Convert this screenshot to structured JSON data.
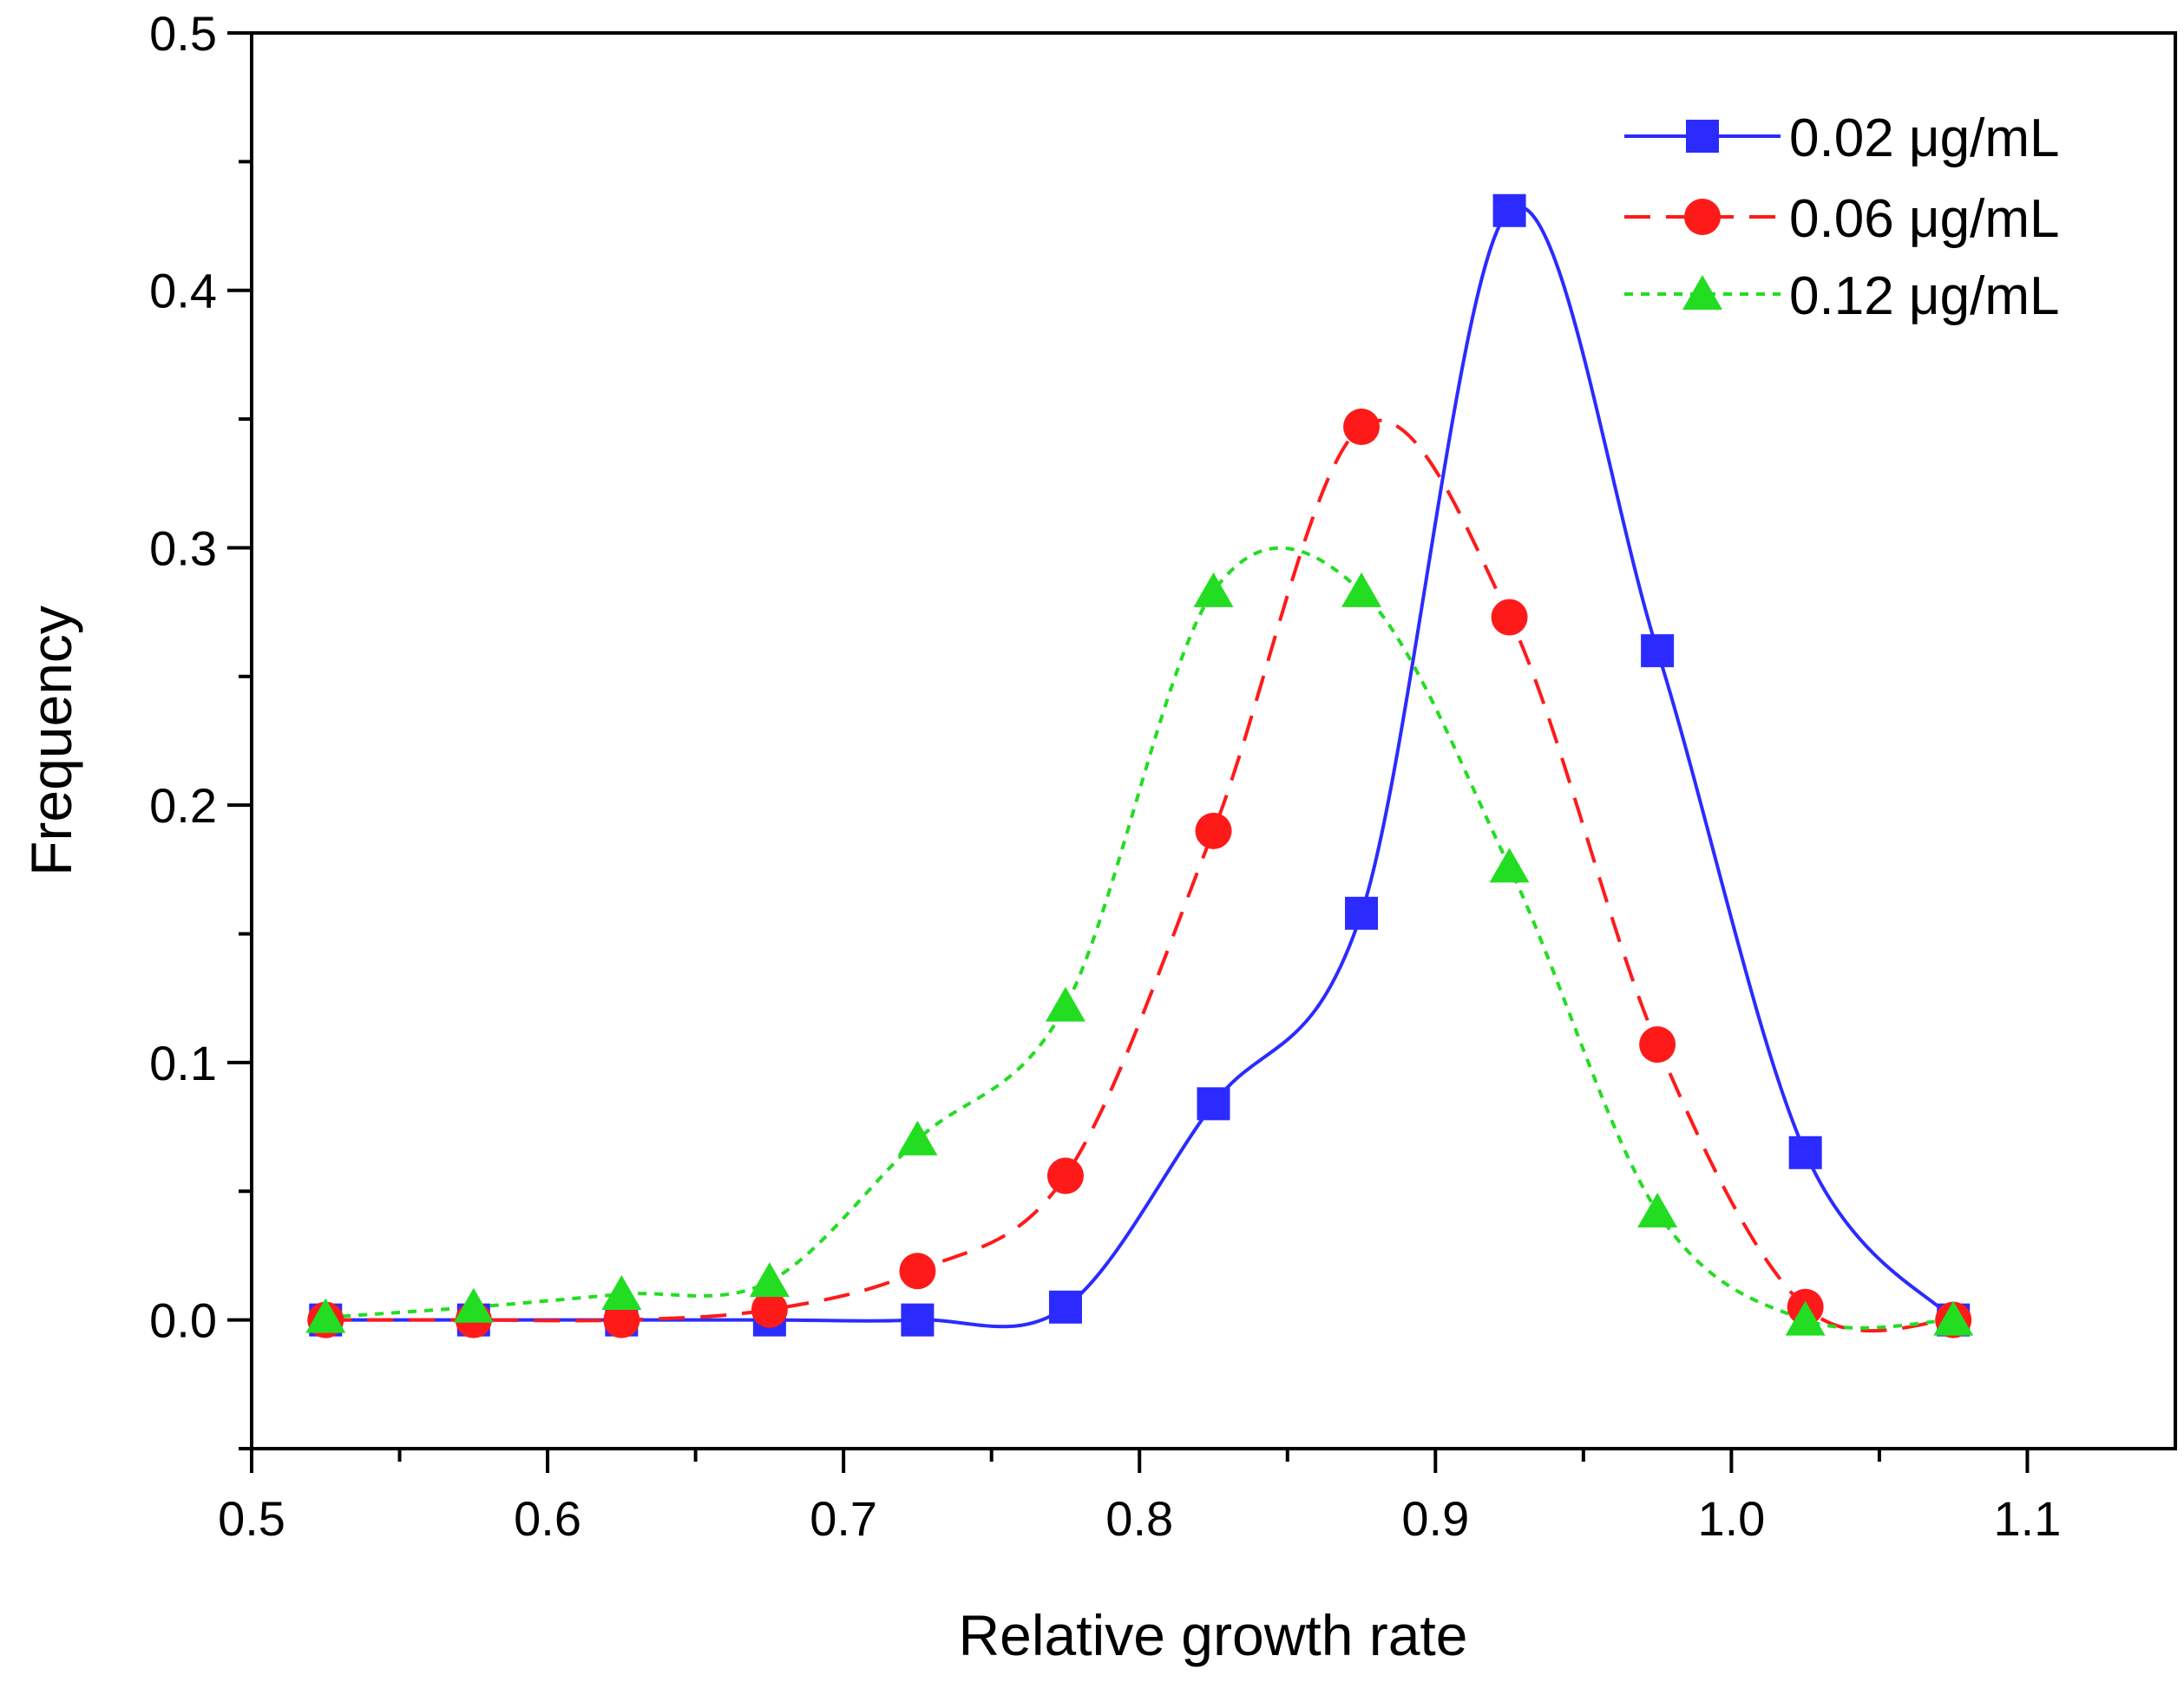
{
  "chart_data": {
    "type": "line",
    "title": "",
    "xlabel": "Relative growth rate",
    "ylabel": "Frequency",
    "xlim": [
      0.5,
      1.15
    ],
    "ylim": [
      -0.05,
      0.5
    ],
    "x_ticks": [
      0.5,
      0.6,
      0.7,
      0.8,
      0.9,
      1.0,
      1.1
    ],
    "x_tick_labels": [
      "0.5",
      "0.6",
      "0.7",
      "0.8",
      "0.9",
      "1.0",
      "1.1"
    ],
    "y_ticks": [
      0.0,
      0.1,
      0.2,
      0.3,
      0.4,
      0.5
    ],
    "y_tick_labels": [
      "0.0",
      "0.1",
      "0.2",
      "0.3",
      "0.4",
      "0.5"
    ],
    "grid": false,
    "legend_position": "top-right",
    "x": [
      0.525,
      0.575,
      0.625,
      0.675,
      0.725,
      0.775,
      0.825,
      0.875,
      0.925,
      0.975,
      1.025,
      1.075
    ],
    "series": [
      {
        "name": "0.02 μg/mL",
        "color": "#2b2bff",
        "marker": "square",
        "line_style": "solid",
        "values": [
          0.0,
          0.0,
          0.0,
          0.0,
          0.0,
          0.005,
          0.084,
          0.158,
          0.431,
          0.26,
          0.065,
          0.0
        ]
      },
      {
        "name": "0.06 μg/mL",
        "color": "#ff1a1a",
        "marker": "circle",
        "line_style": "dashed",
        "values": [
          0.0,
          0.0,
          0.0,
          0.004,
          0.019,
          0.056,
          0.19,
          0.347,
          0.273,
          0.107,
          0.005,
          0.0
        ]
      },
      {
        "name": "0.12 μg/mL",
        "color": "#22dd22",
        "marker": "triangle",
        "line_style": "dotted",
        "values": [
          0.001,
          0.005,
          0.01,
          0.015,
          0.07,
          0.122,
          0.283,
          0.283,
          0.176,
          0.042,
          0.0,
          0.0
        ]
      }
    ]
  }
}
